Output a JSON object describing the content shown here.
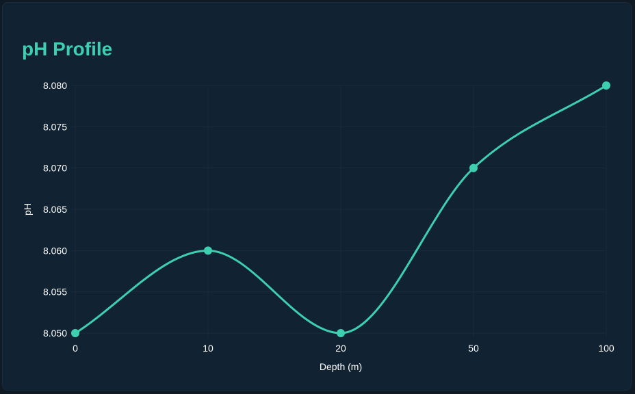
{
  "chart_data": {
    "type": "line",
    "title": "pH Profile",
    "xlabel": "Depth (m)",
    "ylabel": "pH",
    "categories": [
      "0",
      "10",
      "20",
      "50",
      "100"
    ],
    "series": [
      {
        "values": [
          8.05,
          8.06,
          8.05,
          8.07,
          8.08
        ]
      }
    ],
    "y_ticks": [
      "8.050",
      "8.055",
      "8.060",
      "8.065",
      "8.070",
      "8.075",
      "8.080"
    ],
    "ylim": [
      8.05,
      8.08
    ],
    "x_axis": "category",
    "grid": true,
    "smooth": true,
    "colors": {
      "line": "#3ecfb0",
      "point": "#3ecfb0",
      "title": "#3ecfb0",
      "grid": "#1b2b38",
      "background": "#112233"
    }
  }
}
